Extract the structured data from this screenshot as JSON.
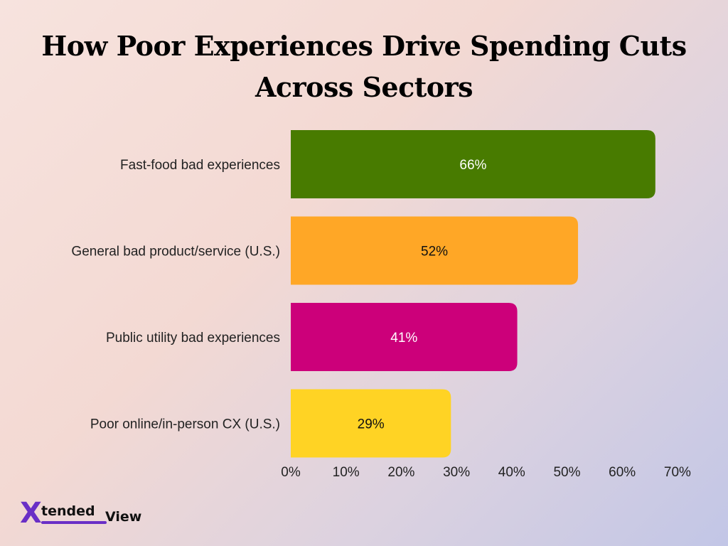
{
  "title": "How Poor Experiences Drive Spending Cuts Across Sectors",
  "logo": {
    "mark": "X",
    "word_a": "tended",
    "word_b": "View"
  },
  "chart_data": {
    "type": "bar",
    "orientation": "horizontal",
    "categories": [
      "Fast-food bad experiences",
      "General bad product/service (U.S.)",
      "Public utility bad experiences",
      "Poor online/in-person CX (U.S.)"
    ],
    "values": [
      66,
      52,
      41,
      29
    ],
    "value_labels": [
      "66%",
      "52%",
      "41%",
      "29%"
    ],
    "colors": [
      "#487b00",
      "#ffa726",
      "#cc007a",
      "#ffd324"
    ],
    "label_colors": [
      "#ffffff",
      "#111111",
      "#ffffff",
      "#111111"
    ],
    "xlim": [
      0,
      70
    ],
    "xticks": [
      0,
      10,
      20,
      30,
      40,
      50,
      60,
      70
    ],
    "xtick_labels": [
      "0%",
      "10%",
      "20%",
      "30%",
      "40%",
      "50%",
      "60%",
      "70%"
    ],
    "grid": false,
    "legend": "none"
  }
}
